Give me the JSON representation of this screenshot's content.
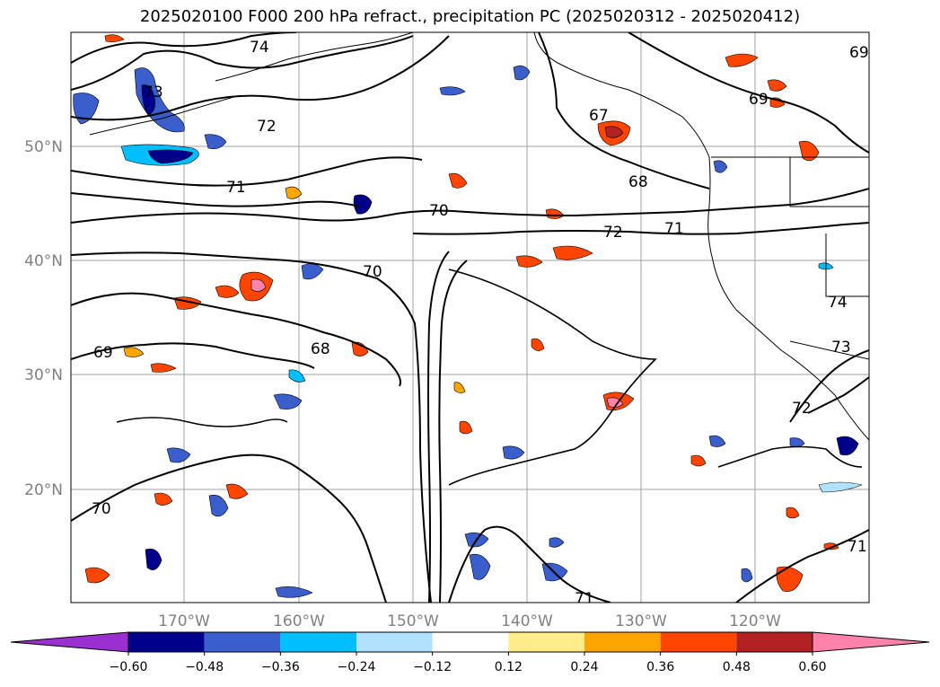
{
  "title": "2025020100 F000 200 hPa refract., precipitation PC (2025020312 - 2025020412)",
  "map": {
    "lat_ticks": [
      "50°N",
      "40°N",
      "30°N",
      "20°N"
    ],
    "lon_ticks": [
      "170°W",
      "160°W",
      "150°W",
      "140°W",
      "130°W",
      "120°W"
    ],
    "contour_labels": [
      "74",
      "73",
      "72",
      "71",
      "70",
      "69",
      "68",
      "67",
      "72",
      "71",
      "70",
      "68",
      "69",
      "70",
      "74",
      "73",
      "72",
      "71",
      "71",
      "69"
    ],
    "colors": {
      "gridline": "#a0a0a0",
      "contour": "#000000",
      "coast": "#000000"
    }
  },
  "colorbar": {
    "colors": [
      "#9b30d0",
      "#00008b",
      "#3a5fcd",
      "#00bfff",
      "#b0e2ff",
      "#ffffff",
      "#ffec8b",
      "#ffa500",
      "#ff4500",
      "#b22222",
      "#ff82ab"
    ],
    "tick_labels": [
      "−0.60",
      "−0.48",
      "−0.36",
      "−0.24",
      "−0.12",
      "0.12",
      "0.24",
      "0.36",
      "0.48",
      "0.60"
    ]
  }
}
